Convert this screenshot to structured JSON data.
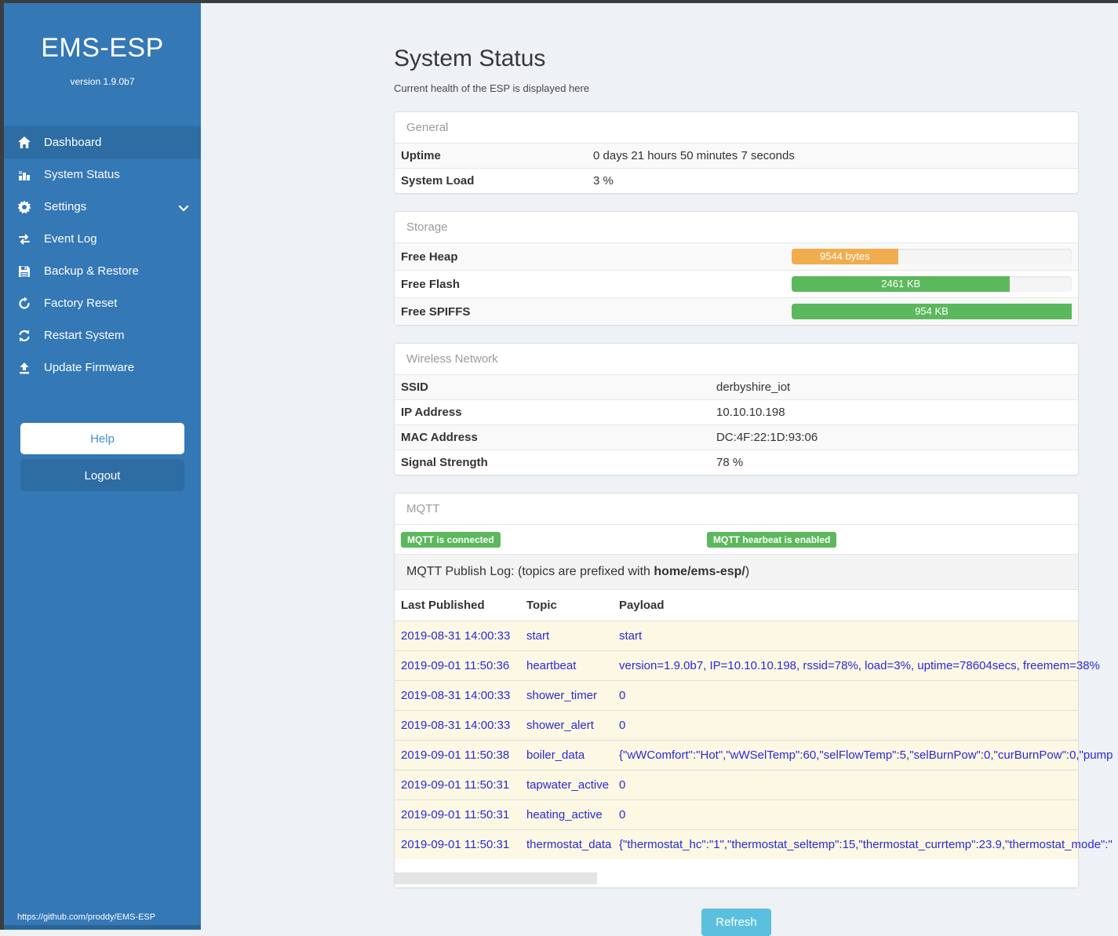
{
  "colors": {
    "sidebar_blue": "#3478b6",
    "sidebar_active": "#2d6da4",
    "frame_dark": "#3a3d40",
    "page_bg": "#eef1f5",
    "success_green": "#5cb85c",
    "warning_orange": "#f0ad4e",
    "info_blue": "#5bc0de",
    "log_text_blue": "#2a2ad4",
    "log_row_bg": "#fcf8e3"
  },
  "sidebar": {
    "brand": "EMS-ESP",
    "version": "version 1.9.0b7",
    "items": [
      {
        "label": "Dashboard",
        "icon": "home-icon"
      },
      {
        "label": "System Status",
        "icon": "chart-icon"
      },
      {
        "label": "Settings",
        "icon": "gear-icon"
      },
      {
        "label": "Event Log",
        "icon": "arrows-icon"
      },
      {
        "label": "Backup & Restore",
        "icon": "floppy-icon"
      },
      {
        "label": "Factory Reset",
        "icon": "rotate-icon"
      },
      {
        "label": "Restart System",
        "icon": "sync-icon"
      },
      {
        "label": "Update Firmware",
        "icon": "upload-icon"
      }
    ],
    "help_label": "Help",
    "logout_label": "Logout",
    "footer_link": "https://github.com/proddy/EMS-ESP"
  },
  "page": {
    "title": "System Status",
    "subtitle": "Current health of the ESP is displayed here",
    "refresh_label": "Refresh"
  },
  "general": {
    "title": "General",
    "rows": [
      {
        "label": "Uptime",
        "value": "0 days 21 hours 50 minutes 7 seconds"
      },
      {
        "label": "System Load",
        "value": "3 %"
      }
    ]
  },
  "storage": {
    "title": "Storage",
    "rows": [
      {
        "label": "Free Heap",
        "bar_label": "9544 bytes",
        "percent": 38,
        "bar_color": "#f0ad4e"
      },
      {
        "label": "Free Flash",
        "bar_label": "2461 KB",
        "percent": 78,
        "bar_color": "#5cb85c"
      },
      {
        "label": "Free SPIFFS",
        "bar_label": "954 KB",
        "percent": 100,
        "bar_color": "#5cb85c"
      }
    ]
  },
  "wireless": {
    "title": "Wireless Network",
    "rows": [
      {
        "label": "SSID",
        "value": "derbyshire_iot"
      },
      {
        "label": "IP Address",
        "value": "10.10.10.198"
      },
      {
        "label": "MAC Address",
        "value": "DC:4F:22:1D:93:06"
      },
      {
        "label": "Signal Strength",
        "value": "78 %"
      }
    ]
  },
  "mqtt": {
    "title": "MQTT",
    "badges": [
      "MQTT is connected",
      "MQTT hearbeat is enabled"
    ],
    "publish_log": {
      "prefix": "MQTT Publish Log: (topics are prefixed with ",
      "bold": "home/ems-esp/",
      "suffix": ")"
    },
    "columns": [
      "Last Published",
      "Topic",
      "Payload"
    ],
    "rows": [
      {
        "time": "2019-08-31 14:00:33",
        "topic": "start",
        "payload": "start"
      },
      {
        "time": "2019-09-01 11:50:36",
        "topic": "heartbeat",
        "payload": "version=1.9.0b7, IP=10.10.10.198, rssid=78%, load=3%, uptime=78604secs, freemem=38%"
      },
      {
        "time": "2019-08-31 14:00:33",
        "topic": "shower_timer",
        "payload": "0"
      },
      {
        "time": "2019-08-31 14:00:33",
        "topic": "shower_alert",
        "payload": "0"
      },
      {
        "time": "2019-09-01 11:50:38",
        "topic": "boiler_data",
        "payload": "{\"wWComfort\":\"Hot\",\"wWSelTemp\":60,\"selFlowTemp\":5,\"selBurnPow\":0,\"curBurnPow\":0,\"pump"
      },
      {
        "time": "2019-09-01 11:50:31",
        "topic": "tapwater_active",
        "payload": "0"
      },
      {
        "time": "2019-09-01 11:50:31",
        "topic": "heating_active",
        "payload": "0"
      },
      {
        "time": "2019-09-01 11:50:31",
        "topic": "thermostat_data",
        "payload": "{\"thermostat_hc\":\"1\",\"thermostat_seltemp\":15,\"thermostat_currtemp\":23.9,\"thermostat_mode\":\""
      }
    ]
  }
}
